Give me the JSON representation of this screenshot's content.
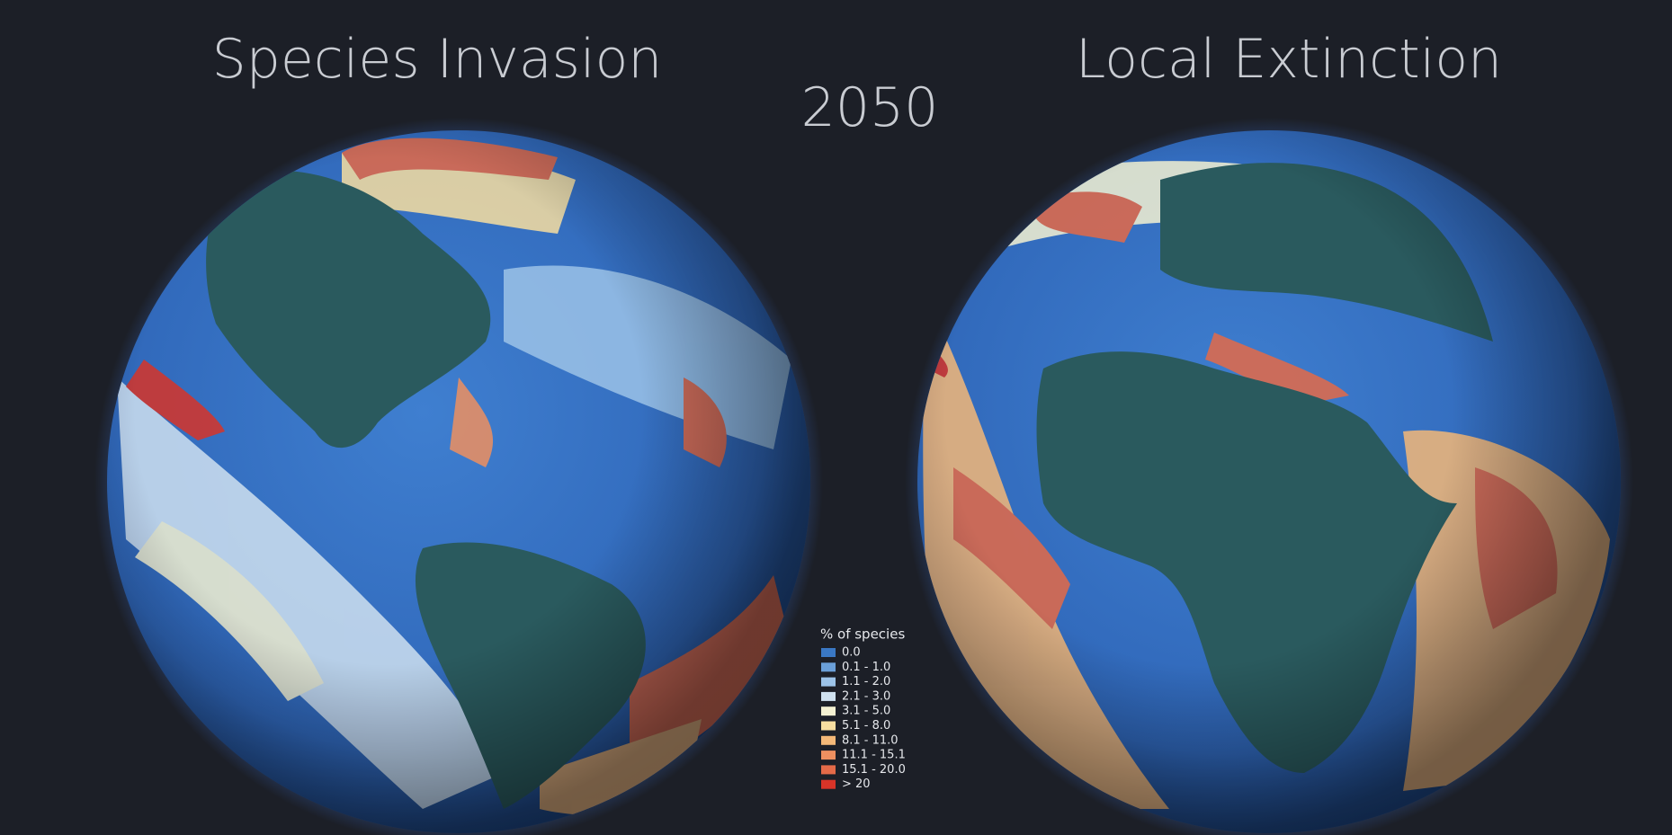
{
  "titles": {
    "left": "Species Invasion",
    "right": "Local Extinction",
    "year": "2050"
  },
  "legend": {
    "title": "% of species",
    "items": [
      {
        "label": "0.0",
        "color": "#3a78c4"
      },
      {
        "label": "0.1 - 1.0",
        "color": "#6a9fd8"
      },
      {
        "label": "1.1 - 2.0",
        "color": "#9cc3e8"
      },
      {
        "label": "2.1 - 3.0",
        "color": "#cfe1f0"
      },
      {
        "label": "3.1 - 5.0",
        "color": "#f4f1d2"
      },
      {
        "label": "5.1 - 8.0",
        "color": "#f7dea0"
      },
      {
        "label": "8.1 - 11.0",
        "color": "#f4b878"
      },
      {
        "label": "11.1 - 15.1",
        "color": "#ee9060"
      },
      {
        "label": "15.1 - 20.0",
        "color": "#e46a48"
      },
      {
        "label": "> 20",
        "color": "#d83428"
      }
    ]
  }
}
